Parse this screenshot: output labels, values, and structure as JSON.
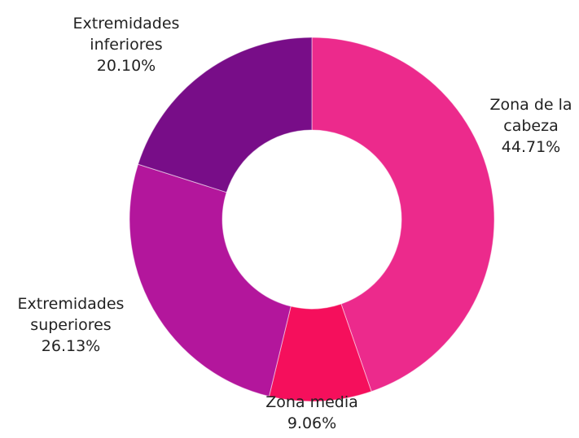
{
  "chart_data": {
    "type": "donut",
    "categories": [
      "Zona de la cabeza",
      "Zona media",
      "Extremidades superiores",
      "Extremidades inferiores"
    ],
    "values": [
      44.71,
      9.06,
      26.13,
      20.1
    ],
    "value_labels": [
      "44.71%",
      "9.06%",
      "26.13%",
      "20.10%"
    ],
    "colors": [
      "#ec2a8c",
      "#f50f5c",
      "#b3169c",
      "#780d88"
    ]
  }
}
